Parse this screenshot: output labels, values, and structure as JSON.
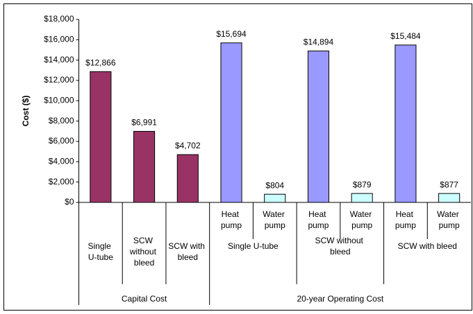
{
  "chart_data": {
    "type": "bar",
    "y_label": "Cost ($)",
    "category_groups": [
      {
        "name": "Capital Cost",
        "categories": [
          "Single U-tube",
          "SCW without bleed",
          "SCW with bleed"
        ]
      },
      {
        "name": "20-year Operating Cost",
        "subgroups": [
          {
            "name": "Single U-tube",
            "categories": [
              "Heat pump",
              "Water pump"
            ]
          },
          {
            "name": "SCW without bleed",
            "categories": [
              "Heat pump",
              "Water pump"
            ]
          },
          {
            "name": "SCW with bleed",
            "categories": [
              "Heat pump",
              "Water pump"
            ]
          }
        ]
      }
    ],
    "values": [
      12866,
      6991,
      4702,
      15694,
      804,
      14894,
      879,
      15484,
      877
    ],
    "value_labels": [
      "$12,866",
      "$6,991",
      "$4,702",
      "$15,694",
      "$804",
      "$14,894",
      "$879",
      "$15,484",
      "$877"
    ],
    "colors": [
      "#993366",
      "#993366",
      "#993366",
      "#9999ff",
      "#ccffff",
      "#9999ff",
      "#ccffff",
      "#9999ff",
      "#ccffff"
    ],
    "ylim": [
      0,
      18000
    ],
    "yticks": [
      {
        "value": 0,
        "label": "$0"
      },
      {
        "value": 2000,
        "label": "$2,000"
      },
      {
        "value": 4000,
        "label": "$4,000"
      },
      {
        "value": 6000,
        "label": "$6,000"
      },
      {
        "value": 8000,
        "label": "$8,000"
      },
      {
        "value": 10000,
        "label": "$10,000"
      },
      {
        "value": 12000,
        "label": "$12,000"
      },
      {
        "value": 14000,
        "label": "$14,000"
      },
      {
        "value": 16000,
        "label": "$16,000"
      },
      {
        "value": 18000,
        "label": "$18,000"
      }
    ]
  }
}
